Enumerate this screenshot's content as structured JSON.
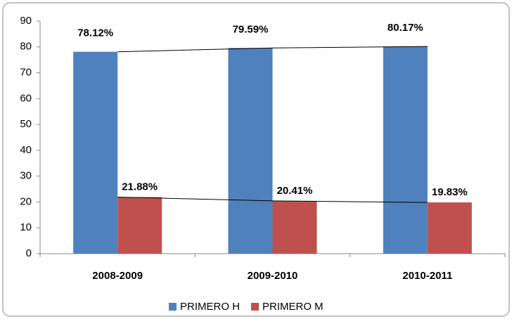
{
  "chart_data": {
    "type": "bar",
    "categories": [
      "2008-2009",
      "2009-2010",
      "2010-2011"
    ],
    "series": [
      {
        "name": "PRIMERO H",
        "color": "#4f81bd",
        "values": [
          78.12,
          79.59,
          80.17
        ],
        "value_labels": [
          "78.12%",
          "79.59%",
          "80.17%"
        ]
      },
      {
        "name": "PRIMERO M",
        "color": "#c0504d",
        "values": [
          21.88,
          20.41,
          19.83
        ],
        "value_labels": [
          "21.88%",
          "20.41%",
          "19.83%"
        ]
      }
    ],
    "ylim": [
      0,
      90
    ],
    "yticks": [
      0,
      10,
      20,
      30,
      40,
      50,
      60,
      70,
      80,
      90
    ],
    "trendlines": true,
    "legend": "bottom"
  }
}
